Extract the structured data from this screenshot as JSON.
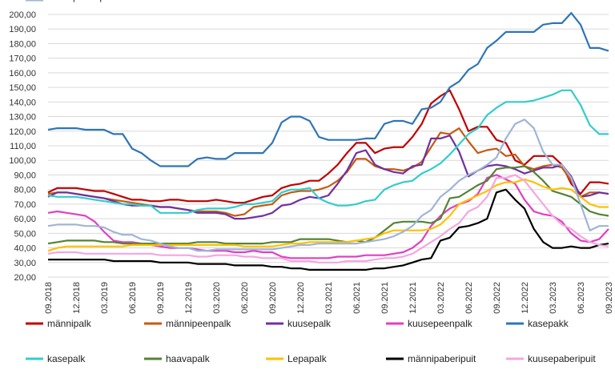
{
  "chart_data": {
    "type": "line",
    "title": "",
    "xlabel": "",
    "ylabel": "",
    "ylim": [
      20,
      200
    ],
    "yticks": [
      "20,00",
      "30,00",
      "40,00",
      "50,00",
      "60,00",
      "70,00",
      "80,00",
      "90,00",
      "100,00",
      "110,00",
      "120,00",
      "130,00",
      "140,00",
      "150,00",
      "160,00",
      "170,00",
      "180,00",
      "190,00",
      "200,00"
    ],
    "xticks": [
      "09.2018",
      "12.2018",
      "03.2019",
      "06.2019",
      "09.2019",
      "12.2019",
      "03.2020",
      "06.2020",
      "09.2020",
      "12.2020",
      "03.2021",
      "06.2021",
      "09.2021",
      "12.2021",
      "03.2022",
      "06.2022",
      "09.2022",
      "12.2022",
      "03.2023",
      "06.2023",
      "09.2023"
    ],
    "grid": true,
    "legend_position": "bottom",
    "x": [
      "09.2018",
      "10.2018",
      "11.2018",
      "12.2018",
      "01.2019",
      "02.2019",
      "03.2019",
      "04.2019",
      "05.2019",
      "06.2019",
      "07.2019",
      "08.2019",
      "09.2019",
      "10.2019",
      "11.2019",
      "12.2019",
      "01.2020",
      "02.2020",
      "03.2020",
      "04.2020",
      "05.2020",
      "06.2020",
      "07.2020",
      "08.2020",
      "09.2020",
      "10.2020",
      "11.2020",
      "12.2020",
      "01.2021",
      "02.2021",
      "03.2021",
      "04.2021",
      "05.2021",
      "06.2021",
      "07.2021",
      "08.2021",
      "09.2021",
      "10.2021",
      "11.2021",
      "12.2021",
      "01.2022",
      "02.2022",
      "03.2022",
      "04.2022",
      "05.2022",
      "06.2022",
      "07.2022",
      "08.2022",
      "09.2022",
      "10.2022",
      "11.2022",
      "12.2022",
      "01.2023",
      "02.2023",
      "03.2023",
      "04.2023",
      "05.2023",
      "06.2023",
      "07.2023",
      "08.2023",
      "09.2023"
    ],
    "series": [
      {
        "name": "männipalk",
        "color": "#c00000",
        "values": [
          78,
          81,
          81,
          81,
          80,
          79,
          79,
          77,
          75,
          73,
          73,
          72,
          72,
          73,
          73,
          72,
          72,
          72,
          73,
          72,
          71,
          71,
          73,
          75,
          76,
          81,
          83,
          84,
          86,
          86,
          91,
          97,
          105,
          112,
          112,
          105,
          108,
          109,
          109,
          116,
          125,
          139,
          144,
          148,
          135,
          120,
          123,
          123,
          114,
          112,
          100,
          97,
          103,
          103,
          103,
          97,
          84,
          77,
          85,
          85,
          84
        ]
      },
      {
        "name": "männipeenpalk",
        "color": "#c55a11",
        "values": [
          77,
          78,
          78,
          77,
          76,
          75,
          74,
          73,
          72,
          71,
          70,
          69,
          68,
          68,
          67,
          66,
          65,
          65,
          65,
          64,
          62,
          63,
          68,
          69,
          70,
          76,
          78,
          79,
          79,
          80,
          82,
          86,
          92,
          101,
          101,
          96,
          94,
          94,
          93,
          95,
          99,
          109,
          119,
          118,
          122,
          113,
          105,
          107,
          108,
          103,
          104,
          96,
          94,
          96,
          97,
          95,
          86,
          75,
          78,
          78,
          77
        ]
      },
      {
        "name": "kuusepalk",
        "color": "#7030a0",
        "values": [
          75,
          78,
          78,
          77,
          76,
          75,
          74,
          72,
          70,
          69,
          69,
          69,
          68,
          68,
          67,
          66,
          64,
          64,
          64,
          63,
          60,
          60,
          61,
          62,
          64,
          69,
          70,
          73,
          75,
          74,
          76,
          84,
          93,
          105,
          107,
          97,
          94,
          92,
          91,
          96,
          97,
          115,
          115,
          117,
          106,
          89,
          93,
          96,
          97,
          96,
          94,
          91,
          93,
          95,
          95,
          97,
          89,
          75,
          76,
          78,
          77
        ]
      },
      {
        "name": "kuusepeenpalk",
        "color": "#e040c0",
        "values": [
          64,
          65,
          64,
          63,
          62,
          58,
          51,
          45,
          44,
          44,
          43,
          42,
          41,
          40,
          40,
          40,
          39,
          38,
          38,
          38,
          37,
          37,
          38,
          37,
          37,
          34,
          33,
          33,
          33,
          33,
          33,
          34,
          34,
          34,
          35,
          35,
          35,
          36,
          37,
          40,
          45,
          55,
          62,
          67,
          70,
          72,
          77,
          88,
          90,
          87,
          84,
          73,
          65,
          63,
          62,
          58,
          50,
          45,
          44,
          46,
          53
        ]
      },
      {
        "name": "kasepakk",
        "color": "#2e75b6",
        "values": [
          121,
          122,
          122,
          122,
          121,
          121,
          121,
          118,
          118,
          108,
          105,
          100,
          96,
          96,
          96,
          96,
          101,
          102,
          101,
          101,
          105,
          105,
          105,
          105,
          112,
          126,
          130,
          130,
          127,
          116,
          114,
          114,
          114,
          114,
          115,
          115,
          125,
          127,
          127,
          125,
          135,
          136,
          140,
          150,
          154,
          162,
          166,
          177,
          182,
          188,
          188,
          188,
          188,
          193,
          194,
          194,
          201,
          193,
          177,
          177,
          175
        ]
      },
      {
        "name": "kasepalk",
        "color": "#33cccc",
        "values": [
          76,
          75,
          75,
          75,
          74,
          73,
          72,
          71,
          70,
          70,
          69,
          69,
          64,
          64,
          64,
          64,
          66,
          67,
          67,
          67,
          68,
          70,
          70,
          71,
          72,
          78,
          80,
          80,
          81,
          74,
          71,
          69,
          69,
          70,
          72,
          73,
          80,
          83,
          85,
          86,
          91,
          94,
          98,
          104,
          111,
          118,
          122,
          131,
          136,
          140,
          140,
          140,
          141,
          143,
          145,
          148,
          148,
          138,
          124,
          118,
          118
        ]
      },
      {
        "name": "haavapalk",
        "color": "#548235",
        "values": [
          43,
          44,
          45,
          45,
          45,
          45,
          44,
          44,
          43,
          43,
          43,
          43,
          43,
          43,
          43,
          43,
          44,
          44,
          44,
          43,
          43,
          43,
          43,
          43,
          44,
          44,
          44,
          46,
          46,
          46,
          46,
          45,
          44,
          45,
          44,
          47,
          52,
          57,
          58,
          58,
          58,
          57,
          60,
          74,
          75,
          79,
          83,
          86,
          94,
          95,
          95,
          96,
          92,
          86,
          79,
          77,
          75,
          70,
          65,
          63,
          62
        ]
      },
      {
        "name": "Lepapalk",
        "color": "#ffc000",
        "values": [
          38,
          40,
          41,
          41,
          41,
          41,
          41,
          41,
          41,
          42,
          42,
          42,
          42,
          42,
          42,
          42,
          42,
          42,
          42,
          42,
          42,
          41,
          41,
          41,
          41,
          42,
          43,
          43,
          44,
          44,
          44,
          44,
          44,
          45,
          46,
          47,
          50,
          52,
          52,
          52,
          52,
          53,
          56,
          62,
          70,
          73,
          76,
          79,
          83,
          85,
          85,
          87,
          85,
          82,
          80,
          81,
          80,
          75,
          70,
          68,
          68
        ]
      },
      {
        "name": "männipaberipuit",
        "color": "#000000",
        "values": [
          32,
          32,
          32,
          32,
          32,
          32,
          32,
          31,
          31,
          31,
          31,
          31,
          30,
          30,
          30,
          30,
          29,
          29,
          29,
          29,
          28,
          28,
          28,
          28,
          27,
          27,
          26,
          26,
          25,
          25,
          25,
          25,
          25,
          25,
          25,
          26,
          26,
          27,
          28,
          30,
          32,
          33,
          45,
          47,
          54,
          55,
          57,
          60,
          78,
          80,
          73,
          67,
          53,
          44,
          40,
          40,
          41,
          40,
          40,
          42,
          43
        ]
      },
      {
        "name": "kuusepaberipuit",
        "color": "#f4a6e0",
        "values": [
          36,
          37,
          37,
          37,
          36,
          36,
          36,
          36,
          36,
          36,
          36,
          36,
          35,
          35,
          35,
          35,
          34,
          34,
          35,
          35,
          35,
          34,
          34,
          33,
          33,
          33,
          31,
          31,
          31,
          30,
          30,
          30,
          31,
          31,
          31,
          32,
          33,
          33,
          34,
          36,
          40,
          44,
          48,
          53,
          57,
          65,
          68,
          75,
          88,
          88,
          90,
          86,
          78,
          70,
          62,
          56,
          53,
          48,
          44,
          42,
          41
        ]
      },
      {
        "name": "kuusepaberipuit",
        "color": "#9fb5d6",
        "values": [
          55,
          56,
          56,
          56,
          55,
          55,
          54,
          51,
          49,
          49,
          46,
          45,
          43,
          41,
          40,
          40,
          38,
          38,
          39,
          39,
          39,
          39,
          39,
          39,
          39,
          40,
          41,
          42,
          42,
          43,
          43,
          43,
          43,
          43,
          44,
          45,
          46,
          48,
          51,
          55,
          62,
          66,
          75,
          80,
          86,
          90,
          93,
          97,
          102,
          115,
          125,
          128,
          122,
          106,
          97,
          97,
          88,
          70,
          52,
          55,
          55
        ]
      }
    ]
  }
}
